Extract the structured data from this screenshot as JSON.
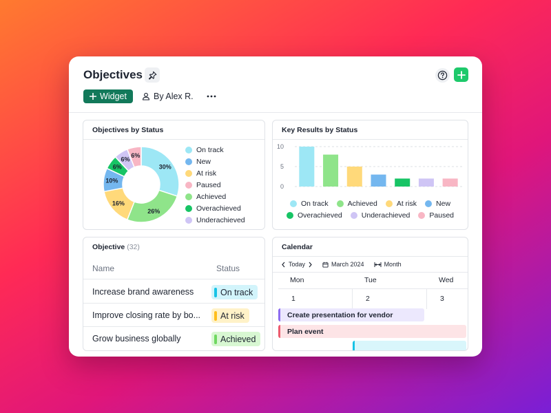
{
  "header": {
    "title": "Objectives",
    "widget_label": "Widget",
    "by_label": "By Alex R."
  },
  "objectives_by_status": {
    "title": "Objectives by Status",
    "legend": [
      {
        "label": "On track",
        "color": "#9de7f5"
      },
      {
        "label": "New",
        "color": "#74b7ef"
      },
      {
        "label": "At risk",
        "color": "#ffd97a"
      },
      {
        "label": "Paused",
        "color": "#f8b6c4"
      },
      {
        "label": "Achieved",
        "color": "#8fe48a"
      },
      {
        "label": "Overachieved",
        "color": "#17c465"
      },
      {
        "label": "Underachieved",
        "color": "#cfc5f5"
      }
    ]
  },
  "key_results_by_status": {
    "title": "Key Results by Status",
    "legend_row1": [
      {
        "label": "On track",
        "color": "#9de7f5"
      },
      {
        "label": "Achieved",
        "color": "#8fe48a"
      },
      {
        "label": "At risk",
        "color": "#ffd97a"
      },
      {
        "label": "New",
        "color": "#74b7ef"
      }
    ],
    "legend_row2": [
      {
        "label": "Overachieved",
        "color": "#17c465"
      },
      {
        "label": "Underachieved",
        "color": "#cfc5f5"
      },
      {
        "label": "Paused",
        "color": "#f8b6c4"
      }
    ]
  },
  "chart_data": [
    {
      "type": "pie",
      "title": "Objectives by Status",
      "donut": true,
      "slices": [
        {
          "label": "On track",
          "value": 30,
          "display": "30%",
          "color": "#9de7f5"
        },
        {
          "label": "Achieved",
          "value": 26,
          "display": "26%",
          "color": "#8fe48a"
        },
        {
          "label": "At risk",
          "value": 16,
          "display": "16%",
          "color": "#ffd97a"
        },
        {
          "label": "New",
          "value": 10,
          "display": "10%",
          "color": "#74b7ef"
        },
        {
          "label": "Overachieved",
          "value": 6,
          "display": "6%",
          "color": "#17c465"
        },
        {
          "label": "Underachieved",
          "value": 6,
          "display": "6%",
          "color": "#cfc5f5"
        },
        {
          "label": "Paused",
          "value": 6,
          "display": "6%",
          "color": "#f8b6c4"
        }
      ]
    },
    {
      "type": "bar",
      "title": "Key Results by Status",
      "categories": [
        "On track",
        "Achieved",
        "At risk",
        "New",
        "Overachieved",
        "Underachieved",
        "Paused"
      ],
      "values": [
        10,
        8,
        5,
        3,
        2,
        2,
        2
      ],
      "colors": [
        "#9de7f5",
        "#8fe48a",
        "#ffd97a",
        "#74b7ef",
        "#17c465",
        "#cfc5f5",
        "#f8b6c4"
      ],
      "ylim": [
        0,
        10
      ],
      "yticks": [
        "0",
        "5",
        "10"
      ],
      "grid": true,
      "legend": "bottom"
    }
  ],
  "objective_table": {
    "title": "Objective",
    "count": "(32)",
    "columns": {
      "name": "Name",
      "status": "Status"
    },
    "rows": [
      {
        "name": "Increase brand awareness",
        "status": "On track",
        "badge_bg": "#d2f4fb",
        "bar_color": "#16c3e6"
      },
      {
        "name": "Improve closing rate by bo...",
        "status": "At risk",
        "badge_bg": "#fff2c8",
        "bar_color": "#ffbe1c"
      },
      {
        "name": "Grow business globally",
        "status": "Achieved",
        "badge_bg": "#d8f7d2",
        "bar_color": "#6fd860"
      }
    ]
  },
  "calendar": {
    "title": "Calendar",
    "today_label": "Today",
    "month_label": "March 2024",
    "view_label": "Month",
    "days": [
      {
        "name": "Mon",
        "date": "1"
      },
      {
        "name": "Tue",
        "date": "2"
      },
      {
        "name": "Wed",
        "date": "3"
      }
    ],
    "events": [
      {
        "label": "Create presentation for vendor",
        "bg": "#ece8fd",
        "border": "#8c6cf0"
      },
      {
        "label": "Plan event",
        "bg": "#fde4e6",
        "border": "#ec5b6e"
      },
      {
        "label": "",
        "bg": "#d9f6fb",
        "border": "#16c3e6"
      }
    ]
  }
}
